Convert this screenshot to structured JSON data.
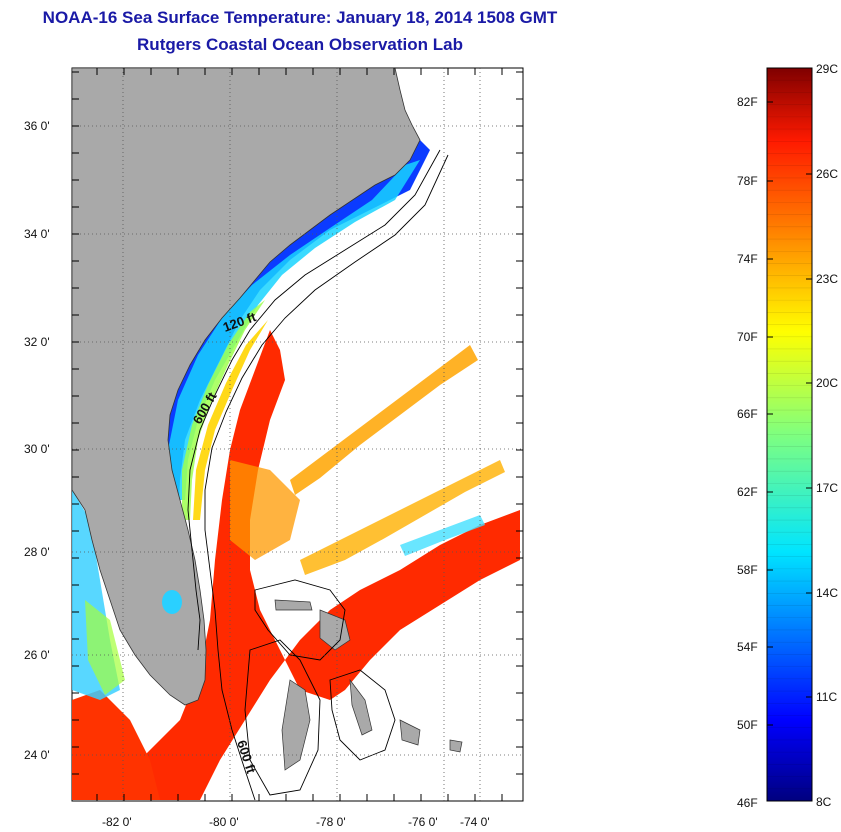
{
  "header": {
    "title": "NOAA-16 Sea Surface Temperature:  January 18, 2014 1508 GMT",
    "subtitle": "Rutgers Coastal Ocean Observation Lab"
  },
  "map": {
    "lon_ticks": [
      "-82 0'",
      "-80 0'",
      "-78 0'",
      "-76 0'",
      "-74 0'"
    ],
    "lat_ticks": [
      "36 0'",
      "34 0'",
      "32 0'",
      "30 0'",
      "28 0'",
      "26 0'",
      "24 0'"
    ],
    "contour_labels": [
      "120 ft",
      "600 ft",
      "600 ft"
    ],
    "land_color": "#a9a9a9",
    "grid": "dotted"
  },
  "colorbar": {
    "fahrenheit_labels": [
      "82F",
      "78F",
      "74F",
      "70F",
      "66F",
      "62F",
      "58F",
      "54F",
      "50F",
      "46F"
    ],
    "celsius_labels": [
      "29C",
      "26C",
      "23C",
      "20C",
      "17C",
      "14C",
      "11C",
      "8C"
    ],
    "min_c": 8,
    "max_c": 29,
    "colormap": "jet"
  }
}
